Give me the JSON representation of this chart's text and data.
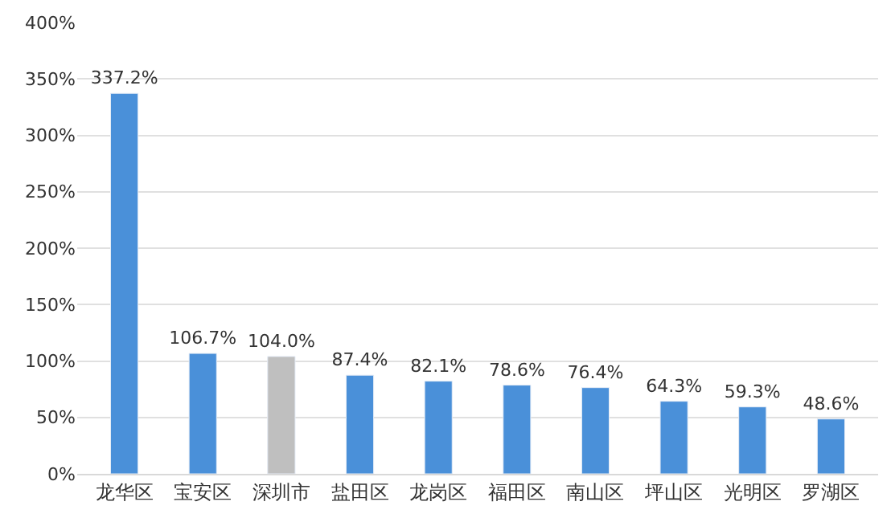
{
  "chart_data": {
    "type": "bar",
    "categories": [
      "龙华区",
      "宝安区",
      "深圳市",
      "盐田区",
      "龙岗区",
      "福田区",
      "南山区",
      "坪山区",
      "光明区",
      "罗湖区"
    ],
    "values": [
      337.2,
      106.7,
      104.0,
      87.4,
      82.1,
      78.6,
      76.4,
      64.3,
      59.3,
      48.6
    ],
    "colors": [
      "#4a90d9",
      "#4a90d9",
      "#bfbfbf",
      "#4a90d9",
      "#4a90d9",
      "#4a90d9",
      "#4a90d9",
      "#4a90d9",
      "#4a90d9",
      "#4a90d9"
    ],
    "value_labels": [
      "337.2%",
      "106.7%",
      "104.0%",
      "87.4%",
      "82.1%",
      "78.6%",
      "76.4%",
      "64.3%",
      "59.3%",
      "48.6%"
    ],
    "ylim": [
      0,
      400
    ],
    "yticks": [
      {
        "value": 0,
        "label": "0%"
      },
      {
        "value": 50,
        "label": "50%"
      },
      {
        "value": 100,
        "label": "100%"
      },
      {
        "value": 150,
        "label": "150%"
      },
      {
        "value": 200,
        "label": "200%"
      },
      {
        "value": 250,
        "label": "250%"
      },
      {
        "value": 300,
        "label": "300%"
      },
      {
        "value": 350,
        "label": "350%"
      },
      {
        "value": 400,
        "label": "400%"
      }
    ],
    "grid": "y"
  }
}
